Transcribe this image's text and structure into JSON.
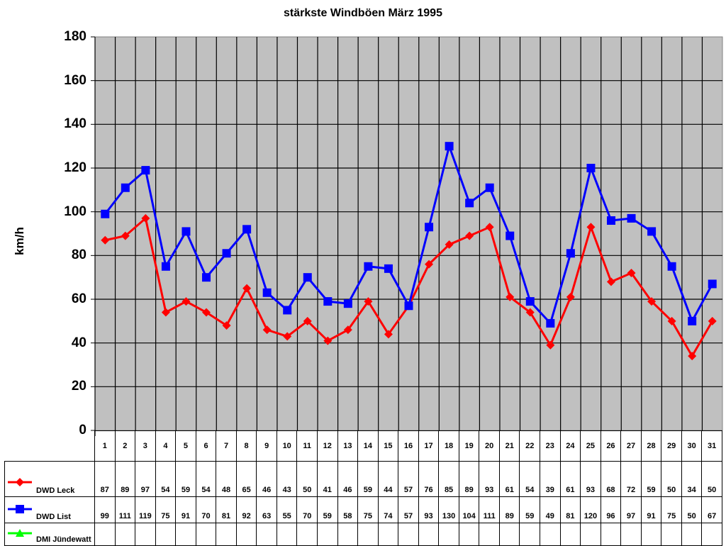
{
  "chart_data": {
    "type": "line",
    "title": "stärkste Windböen März 1995",
    "xlabel": "",
    "ylabel": "km/h",
    "ylim": [
      0,
      180
    ],
    "yticks": [
      0,
      20,
      40,
      60,
      80,
      100,
      120,
      140,
      160,
      180
    ],
    "grid": true,
    "legend_position": "data-table-left",
    "categories": [
      "1",
      "2",
      "3",
      "4",
      "5",
      "6",
      "7",
      "8",
      "9",
      "10",
      "11",
      "12",
      "13",
      "14",
      "15",
      "16",
      "17",
      "18",
      "19",
      "20",
      "21",
      "22",
      "23",
      "24",
      "25",
      "26",
      "27",
      "28",
      "29",
      "30",
      "31"
    ],
    "series": [
      {
        "name": "DWD Leck",
        "color": "#ff0000",
        "marker": "diamond",
        "values": [
          87,
          89,
          97,
          54,
          59,
          54,
          48,
          65,
          46,
          43,
          50,
          41,
          46,
          59,
          44,
          57,
          76,
          85,
          89,
          93,
          61,
          54,
          39,
          61,
          93,
          68,
          72,
          59,
          50,
          34,
          50
        ]
      },
      {
        "name": "DWD List",
        "color": "#0000ff",
        "marker": "square",
        "values": [
          99,
          111,
          119,
          75,
          91,
          70,
          81,
          92,
          63,
          55,
          70,
          59,
          58,
          75,
          74,
          57,
          93,
          130,
          104,
          111,
          89,
          59,
          49,
          81,
          120,
          96,
          97,
          91,
          75,
          50,
          67
        ]
      },
      {
        "name": "DMI Jündewatt",
        "color": "#00ff00",
        "marker": "triangle",
        "values": [
          null,
          null,
          null,
          null,
          null,
          null,
          null,
          null,
          null,
          null,
          null,
          null,
          null,
          null,
          null,
          null,
          null,
          null,
          null,
          null,
          null,
          null,
          null,
          null,
          null,
          null,
          null,
          null,
          null,
          null,
          null
        ]
      }
    ]
  },
  "ytick_labels": [
    "180",
    "160",
    "140",
    "120",
    "100",
    "80",
    "60",
    "40",
    "20",
    "0"
  ]
}
